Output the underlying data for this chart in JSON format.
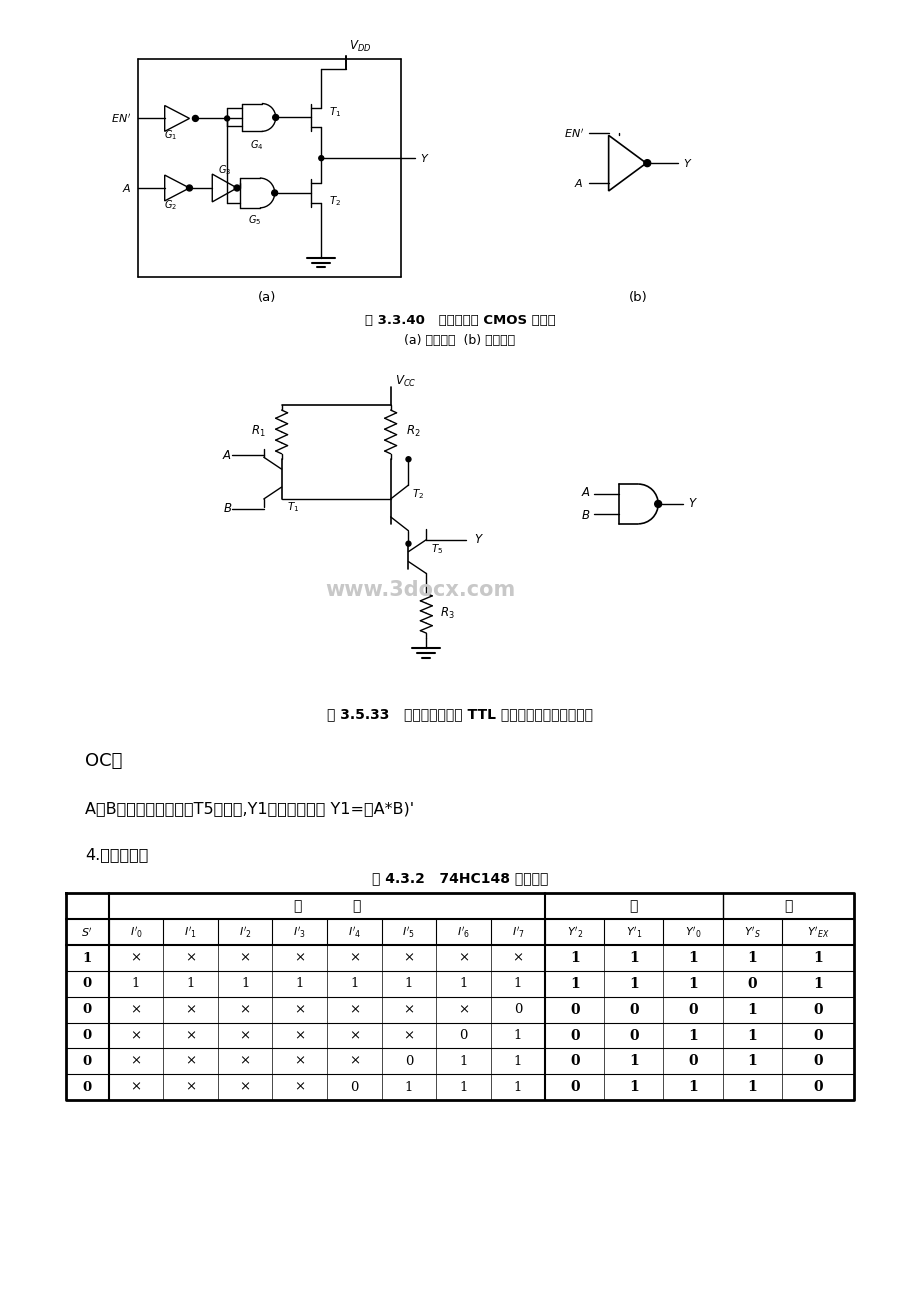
{
  "bg_color": "#ffffff",
  "page_width": 9.2,
  "page_height": 13.02,
  "fig3340_caption": "图 3.3.40   三态输出的 CMOS 反相器",
  "fig3340_sub": "(a) 电路结构  (b) 逻辑符号",
  "fig3533_caption": "图 3.5.33   集电极开路输出 TTL 与非门的电路和图形符号",
  "oc_text": "OC门",
  "ab_text": "A。B同时为高电平时，T5才导通,Y1输出低电平， Y1=（A*B)'",
  "priority_text": "4.优先编码器",
  "table_title": "表 4.3.2   74HC148 的功能表",
  "table_header_group1": "输",
  "table_header_group2": "入",
  "table_header_group3": "输",
  "table_header_group4": "出",
  "table_data": [
    [
      "1",
      "×",
      "×",
      "×",
      "×",
      "×",
      "×",
      "×",
      "×",
      "1",
      "1",
      "1",
      "1",
      "1"
    ],
    [
      "0",
      "1",
      "1",
      "1",
      "1",
      "1",
      "1",
      "1",
      "1",
      "1",
      "1",
      "1",
      "0",
      "1"
    ],
    [
      "0",
      "×",
      "×",
      "×",
      "×",
      "×",
      "×",
      "×",
      "0",
      "0",
      "0",
      "0",
      "1",
      "0"
    ],
    [
      "0",
      "×",
      "×",
      "×",
      "×",
      "×",
      "×",
      "0",
      "1",
      "0",
      "0",
      "1",
      "1",
      "0"
    ],
    [
      "0",
      "×",
      "×",
      "×",
      "×",
      "×",
      "0",
      "1",
      "1",
      "0",
      "1",
      "0",
      "1",
      "0"
    ],
    [
      "0",
      "×",
      "×",
      "×",
      "×",
      "0",
      "1",
      "1",
      "1",
      "0",
      "1",
      "1",
      "1",
      "0"
    ]
  ],
  "watermark": "www.3docx.com"
}
